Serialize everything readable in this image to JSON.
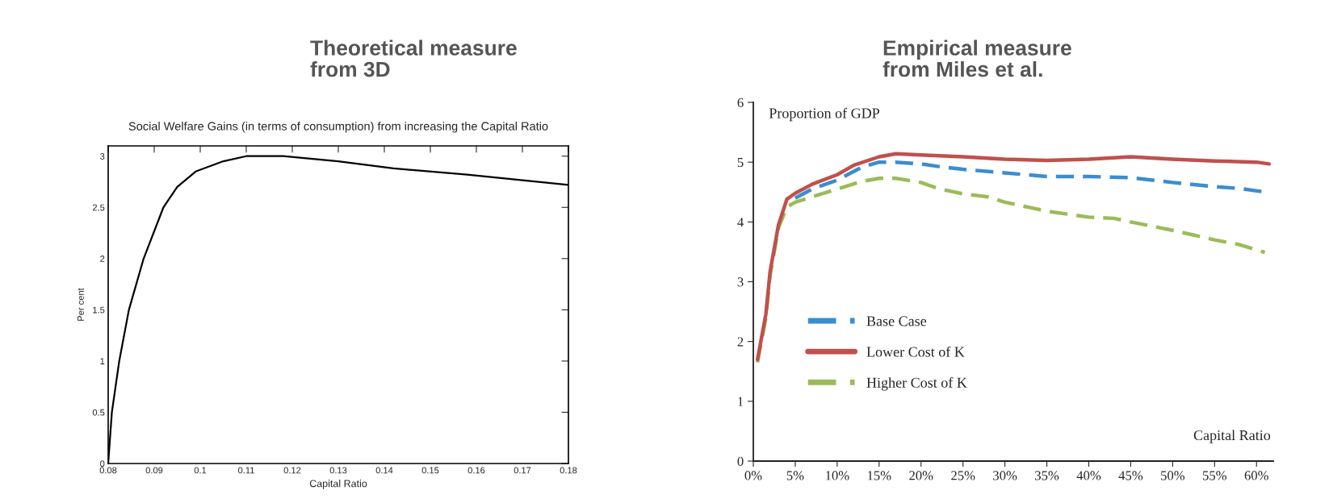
{
  "chart_data": [
    {
      "type": "line",
      "title": "Theoretical measure\nfrom 3D",
      "subtitle": "Social Welfare Gains (in terms of consumption) from increasing the Capital Ratio",
      "xlabel": "Capital Ratio",
      "ylabel": "Per cent",
      "xlim": [
        0.08,
        0.18
      ],
      "ylim": [
        0,
        3.1
      ],
      "xticks": [
        0.08,
        0.09,
        0.1,
        0.11,
        0.12,
        0.13,
        0.14,
        0.15,
        0.16,
        0.17,
        0.18
      ],
      "yticks": [
        0,
        0.5,
        1,
        1.5,
        2,
        2.5,
        3
      ],
      "grid": false,
      "legend": false,
      "series": [
        {
          "color": "#000000",
          "line_style": "solid",
          "x": [
            0.08,
            0.0808,
            0.0824,
            0.0845,
            0.0877,
            0.092,
            0.095,
            0.099,
            0.105,
            0.11,
            0.118,
            0.13,
            0.142,
            0.158,
            0.18
          ],
          "values": [
            0,
            0.5,
            1,
            1.5,
            2,
            2.5,
            2.7,
            2.85,
            2.95,
            3.0,
            3.0,
            2.95,
            2.88,
            2.82,
            2.72
          ]
        }
      ]
    },
    {
      "type": "line",
      "title": "Empirical measure\nfrom Miles et al.",
      "xlabel": "Capital Ratio",
      "ylabel": "Proportion of GDP",
      "xlim": [
        0,
        62
      ],
      "ylim": [
        0,
        6
      ],
      "xticks": [
        {
          "value": 0,
          "label": "0%"
        },
        {
          "value": 5,
          "label": "5%"
        },
        {
          "value": 10,
          "label": "10%"
        },
        {
          "value": 15,
          "label": "15%"
        },
        {
          "value": 20,
          "label": "20%"
        },
        {
          "value": 25,
          "label": "25%"
        },
        {
          "value": 30,
          "label": "30%"
        },
        {
          "value": 35,
          "label": "35%"
        },
        {
          "value": 40,
          "label": "40%"
        },
        {
          "value": 45,
          "label": "45%"
        },
        {
          "value": 50,
          "label": "50%"
        },
        {
          "value": 55,
          "label": "55%"
        },
        {
          "value": 60,
          "label": "60%"
        }
      ],
      "yticks": [
        0,
        1,
        2,
        3,
        4,
        5,
        6
      ],
      "grid": false,
      "legend": "bottom left",
      "series": [
        {
          "name": "Base Case",
          "color": "#3a8dd0",
          "line_style": "dashed",
          "x": [
            5,
            7,
            10,
            13,
            15,
            17,
            20,
            22,
            25,
            30,
            35,
            40,
            45,
            50,
            55,
            58,
            61
          ],
          "values": [
            4.4,
            4.55,
            4.7,
            4.92,
            5.0,
            5.0,
            4.97,
            4.93,
            4.88,
            4.82,
            4.76,
            4.76,
            4.74,
            4.66,
            4.59,
            4.56,
            4.5
          ]
        },
        {
          "name": "Lower Cost of K",
          "color": "#c0504d",
          "line_style": "solid",
          "x": [
            0.5,
            1.5,
            2,
            3,
            4,
            5,
            7,
            10,
            12,
            15,
            17,
            20,
            25,
            30,
            35,
            40,
            45,
            50,
            55,
            60,
            61.5
          ],
          "values": [
            1.7,
            2.46,
            3.17,
            3.95,
            4.38,
            4.48,
            4.63,
            4.79,
            4.95,
            5.09,
            5.14,
            5.12,
            5.09,
            5.05,
            5.03,
            5.05,
            5.09,
            5.05,
            5.02,
            5.0,
            4.97
          ]
        },
        {
          "name": "Higher Cost of K",
          "color": "#9bbb59",
          "line_style": "dashed",
          "x": [
            0.5,
            1.5,
            2,
            3,
            4,
            5,
            7,
            10,
            13,
            15,
            17,
            20,
            22,
            25,
            28,
            30,
            35,
            40,
            43,
            45,
            50,
            55,
            58,
            61
          ],
          "values": [
            1.65,
            2.4,
            3.1,
            3.9,
            4.25,
            4.33,
            4.42,
            4.55,
            4.68,
            4.73,
            4.73,
            4.66,
            4.56,
            4.47,
            4.42,
            4.33,
            4.18,
            4.08,
            4.06,
            4.0,
            3.86,
            3.7,
            3.62,
            3.49
          ]
        }
      ]
    }
  ]
}
